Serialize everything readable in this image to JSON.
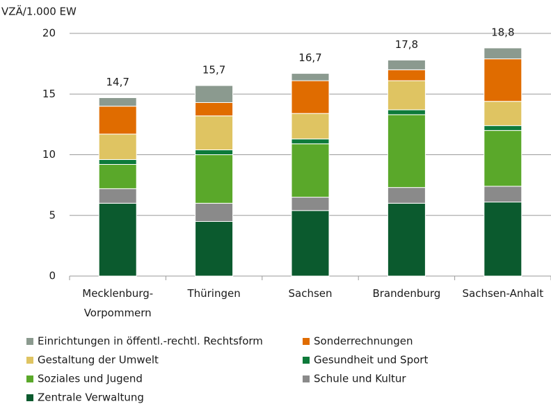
{
  "chart_data": {
    "type": "stacked_bar",
    "y_axis_label": "VZÄ/1.000 EW",
    "categories": [
      [
        "Mecklenburg-",
        "Vorpommern"
      ],
      [
        "Thüringen"
      ],
      [
        "Sachsen"
      ],
      [
        "Brandenburg"
      ],
      [
        "Sachsen-Anhalt"
      ]
    ],
    "series": [
      {
        "name": "Einrichtungen in öffentl.-rechtl. Rechtsform",
        "color": "#8b9a8f",
        "values": [
          0.7,
          1.4,
          0.6,
          0.8,
          0.9
        ]
      },
      {
        "name": "Sonderrechnungen",
        "color": "#e06c00",
        "values": [
          2.3,
          1.1,
          2.7,
          0.9,
          3.5
        ]
      },
      {
        "name": "Gestaltung der Umwelt",
        "color": "#dfc462",
        "values": [
          2.1,
          2.8,
          2.1,
          2.4,
          2.0
        ]
      },
      {
        "name": "Gesundheit und Sport",
        "color": "#0d7a3a",
        "values": [
          0.4,
          0.4,
          0.4,
          0.4,
          0.4
        ]
      },
      {
        "name": "Soziales und Jugend",
        "color": "#5aa82a",
        "values": [
          2.0,
          4.0,
          4.4,
          6.0,
          4.6
        ]
      },
      {
        "name": "Schule und Kultur",
        "color": "#8a8a8a",
        "values": [
          1.2,
          1.5,
          1.1,
          1.3,
          1.3
        ]
      },
      {
        "name": "Zentrale Verwaltung",
        "color": "#0b5a2e",
        "values": [
          6.0,
          4.5,
          5.4,
          6.0,
          6.1
        ]
      }
    ],
    "totals": [
      14.7,
      15.7,
      16.7,
      17.8,
      18.8
    ],
    "total_labels": [
      "14,7",
      "15,7",
      "16,7",
      "17,8",
      "18,8"
    ],
    "ylim": [
      0,
      20
    ],
    "yticks": [
      0,
      5,
      10,
      15,
      20
    ],
    "grid": true
  }
}
